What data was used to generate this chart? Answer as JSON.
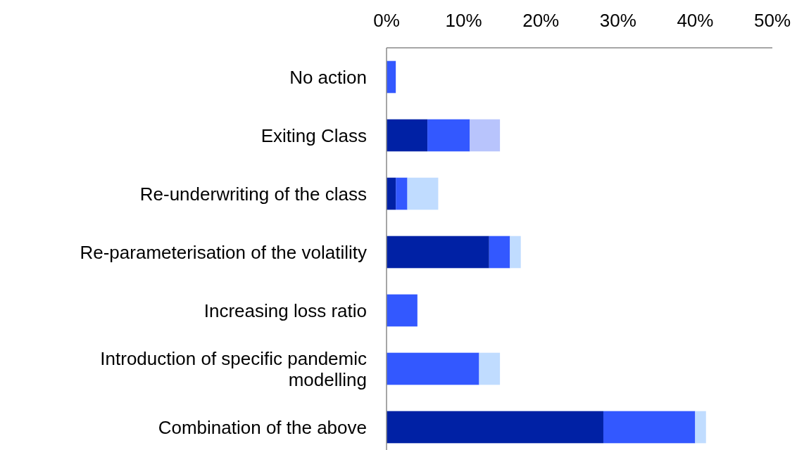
{
  "chart_data": {
    "type": "bar",
    "orientation": "horizontal",
    "stacked": true,
    "categories": [
      "No action",
      "Exiting Class",
      "Re-underwriting of the class",
      "Re-parameterisation of the volatility",
      "Increasing loss ratio",
      "Introduction of specific pandemic modelling",
      "Combination of the above"
    ],
    "series": [
      {
        "color": "#0021a5",
        "values": [
          null,
          5.3,
          1.2,
          13.3,
          null,
          null,
          28.1
        ]
      },
      {
        "color": "#3358ff",
        "values": [
          1.2,
          5.5,
          1.5,
          2.7,
          4.0,
          12.0,
          11.9
        ]
      },
      {
        "color": "#c0dcff",
        "values": [
          null,
          null,
          4.0,
          1.4,
          null,
          2.7,
          1.4
        ]
      },
      {
        "color": "#b8c4fc",
        "values": [
          null,
          3.9,
          null,
          null,
          null,
          null,
          null
        ]
      }
    ],
    "xlim": [
      0,
      50
    ],
    "xticks": [
      {
        "value": 0,
        "label": "0%"
      },
      {
        "value": 10,
        "label": "10%"
      },
      {
        "value": 20,
        "label": "20%"
      },
      {
        "value": 30,
        "label": "30%"
      },
      {
        "value": 40,
        "label": "40%"
      },
      {
        "value": 50,
        "label": "50%"
      }
    ],
    "tick_labels": "x"
  }
}
